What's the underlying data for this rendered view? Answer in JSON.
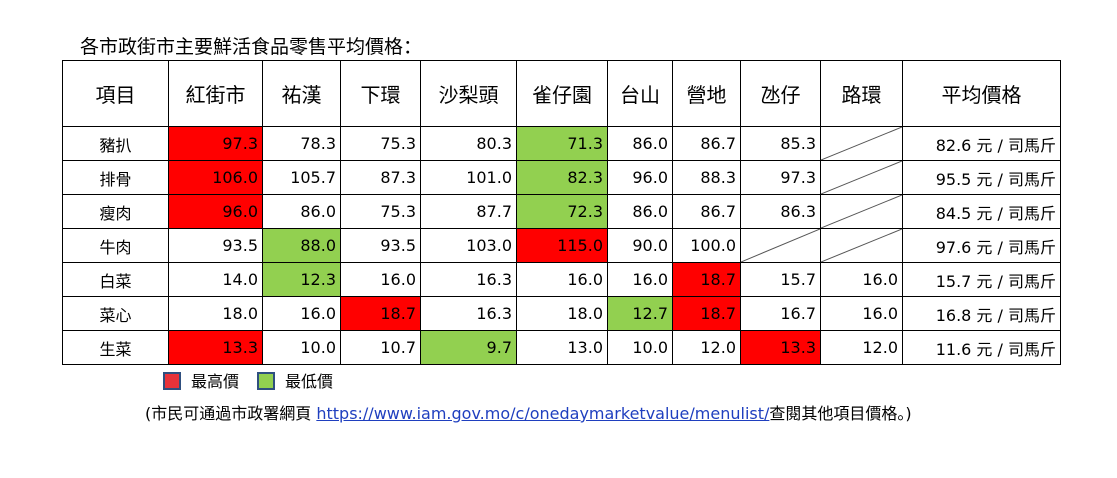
{
  "title": "各市政街市主要鮮活食品零售平均價格：",
  "table": {
    "header": [
      "項目",
      "紅街市",
      "祐漢",
      "下環",
      "沙梨頭",
      "雀仔園",
      "台山",
      "營地",
      "氹仔",
      "路環",
      "平均價格"
    ],
    "rows": [
      {
        "label": "豬扒",
        "cells": [
          {
            "text": "97.3",
            "color": "#ff0000"
          },
          {
            "text": "78.3"
          },
          {
            "text": "75.3"
          },
          {
            "text": "80.3"
          },
          {
            "text": "71.3",
            "color": "#92d050"
          },
          {
            "text": "86.0"
          },
          {
            "text": "86.7"
          },
          {
            "text": "85.3"
          },
          null
        ],
        "average": "82.6 元 / 司馬斤"
      },
      {
        "label": "排骨",
        "cells": [
          {
            "text": "106.0",
            "color": "#ff0000"
          },
          {
            "text": "105.7"
          },
          {
            "text": "87.3"
          },
          {
            "text": "101.0"
          },
          {
            "text": "82.3",
            "color": "#92d050"
          },
          {
            "text": "96.0"
          },
          {
            "text": "88.3"
          },
          {
            "text": "97.3"
          },
          null
        ],
        "average": "95.5 元 / 司馬斤"
      },
      {
        "label": "瘦肉",
        "cells": [
          {
            "text": "96.0",
            "color": "#ff0000"
          },
          {
            "text": "86.0"
          },
          {
            "text": "75.3"
          },
          {
            "text": "87.7"
          },
          {
            "text": "72.3",
            "color": "#92d050"
          },
          {
            "text": "86.0"
          },
          {
            "text": "86.7"
          },
          {
            "text": "86.3"
          },
          null
        ],
        "average": "84.5 元 / 司馬斤"
      },
      {
        "label": "牛肉",
        "cells": [
          {
            "text": "93.5"
          },
          {
            "text": "88.0",
            "color": "#92d050"
          },
          {
            "text": "93.5"
          },
          {
            "text": "103.0"
          },
          {
            "text": "115.0",
            "color": "#ff0000"
          },
          {
            "text": "90.0"
          },
          {
            "text": "100.0"
          },
          null,
          null
        ],
        "average": "97.6 元 / 司馬斤"
      },
      {
        "label": "白菜",
        "cells": [
          {
            "text": "14.0"
          },
          {
            "text": "12.3",
            "color": "#92d050"
          },
          {
            "text": "16.0"
          },
          {
            "text": "16.3"
          },
          {
            "text": "16.0"
          },
          {
            "text": "16.0"
          },
          {
            "text": "18.7",
            "color": "#ff0000"
          },
          {
            "text": "15.7"
          },
          {
            "text": "16.0"
          }
        ],
        "average": "15.7 元 / 司馬斤"
      },
      {
        "label": "菜心",
        "cells": [
          {
            "text": "18.0"
          },
          {
            "text": "16.0"
          },
          {
            "text": "18.7",
            "color": "#ff0000"
          },
          {
            "text": "16.3"
          },
          {
            "text": "18.0"
          },
          {
            "text": "12.7",
            "color": "#92d050"
          },
          {
            "text": "18.7",
            "color": "#ff0000"
          },
          {
            "text": "16.7"
          },
          {
            "text": "16.0"
          }
        ],
        "average": "16.8 元 / 司馬斤"
      },
      {
        "label": "生菜",
        "cells": [
          {
            "text": "13.3",
            "color": "#ff0000"
          },
          {
            "text": "10.0"
          },
          {
            "text": "10.7"
          },
          {
            "text": "9.7",
            "color": "#92d050"
          },
          {
            "text": "13.0"
          },
          {
            "text": "10.0"
          },
          {
            "text": "12.0"
          },
          {
            "text": "13.3",
            "color": "#ff0000"
          },
          {
            "text": "12.0"
          }
        ],
        "average": "11.6 元 / 司馬斤"
      }
    ]
  },
  "legend": [
    {
      "label": "最高價",
      "color": "#e8333a"
    },
    {
      "label": "最低價",
      "color": "#92d050"
    }
  ],
  "footer": {
    "before": "(市民可通過市政署網頁 ",
    "link": "https://www.iam.gov.mo/c/onedaymarketvalue/menulist/",
    "after": "查閱其他項目價格。)"
  }
}
